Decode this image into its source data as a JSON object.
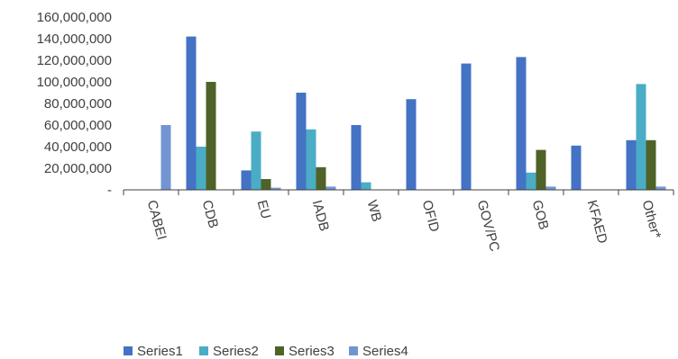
{
  "chart_data": {
    "type": "bar",
    "categories": [
      "CABEI",
      "CDB",
      "EU",
      "IADB",
      "WB",
      "OFID",
      "GOV/PC",
      "GOB",
      "KFAED",
      "Other*"
    ],
    "series": [
      {
        "name": "Series1",
        "color": "#4472C4",
        "values": [
          0,
          142000000,
          18000000,
          90000000,
          60000000,
          84000000,
          117000000,
          123000000,
          41000000,
          46000000
        ]
      },
      {
        "name": "Series2",
        "color": "#4BACC6",
        "values": [
          0,
          40000000,
          54000000,
          56000000,
          7000000,
          0,
          0,
          16000000,
          0,
          98000000
        ]
      },
      {
        "name": "Series3",
        "color": "#4F6228",
        "values": [
          0,
          100000000,
          10000000,
          21000000,
          0,
          0,
          0,
          37000000,
          0,
          46000000
        ]
      },
      {
        "name": "Series4",
        "color": "#7295D2",
        "values": [
          60000000,
          0,
          2000000,
          3000000,
          0,
          0,
          0,
          3000000,
          0,
          3000000
        ]
      }
    ],
    "y_ticks": [
      "-",
      "20,000,000",
      "40,000,000",
      "60,000,000",
      "80,000,000",
      "100,000,000",
      "120,000,000",
      "140,000,000",
      "160,000,000"
    ],
    "ylim": [
      0,
      160000000
    ],
    "grid": false,
    "legend_position": "bottom"
  }
}
